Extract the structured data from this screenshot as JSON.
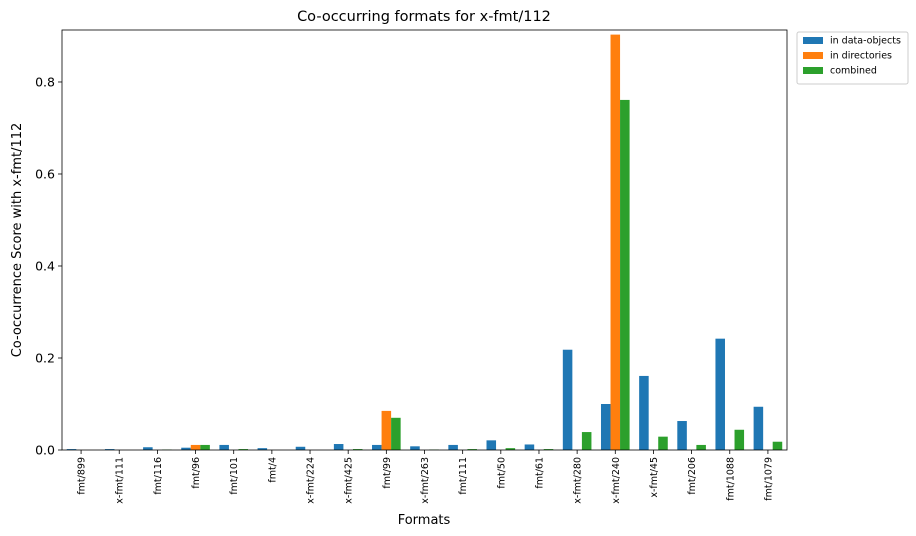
{
  "chart_data": {
    "type": "bar",
    "title": "Co-occurring formats for x-fmt/112",
    "xlabel": "Formats",
    "ylabel": "Co-occurrence Score with x-fmt/112",
    "ylim": [
      0,
      0.913
    ],
    "yticks": [
      0.0,
      0.2,
      0.4,
      0.6,
      0.8
    ],
    "ytick_labels": [
      "0.0",
      "0.2",
      "0.4",
      "0.6",
      "0.8"
    ],
    "legend_position": "outside top-right",
    "grid": false,
    "categories": [
      "fmt/899",
      "x-fmt/111",
      "fmt/116",
      "fmt/96",
      "fmt/101",
      "fmt/4",
      "x-fmt/224",
      "x-fmt/425",
      "fmt/99",
      "x-fmt/263",
      "fmt/111",
      "fmt/50",
      "fmt/61",
      "x-fmt/280",
      "x-fmt/240",
      "x-fmt/45",
      "fmt/206",
      "fmt/1088",
      "fmt/1079"
    ],
    "series": [
      {
        "name": "in data-objects",
        "color": "#1f77b4",
        "values": [
          0.002,
          0.002,
          0.006,
          0.005,
          0.011,
          0.004,
          0.007,
          0.013,
          0.011,
          0.008,
          0.011,
          0.021,
          0.012,
          0.218,
          0.1,
          0.161,
          0.063,
          0.242,
          0.094
        ]
      },
      {
        "name": "in directories",
        "color": "#ff7f0e",
        "values": [
          0.0,
          0.0,
          0.0,
          0.011,
          0.0,
          0.0,
          0.0,
          0.0,
          0.085,
          0.0,
          0.0,
          0.0,
          0.0,
          0.0,
          0.903,
          0.0,
          0.0,
          0.0,
          0.0
        ]
      },
      {
        "name": "combined",
        "color": "#2ca02c",
        "values": [
          0.0,
          0.0,
          0.001,
          0.011,
          0.002,
          0.0,
          0.0,
          0.002,
          0.07,
          0.001,
          0.002,
          0.004,
          0.002,
          0.039,
          0.761,
          0.029,
          0.011,
          0.044,
          0.018
        ]
      }
    ]
  }
}
